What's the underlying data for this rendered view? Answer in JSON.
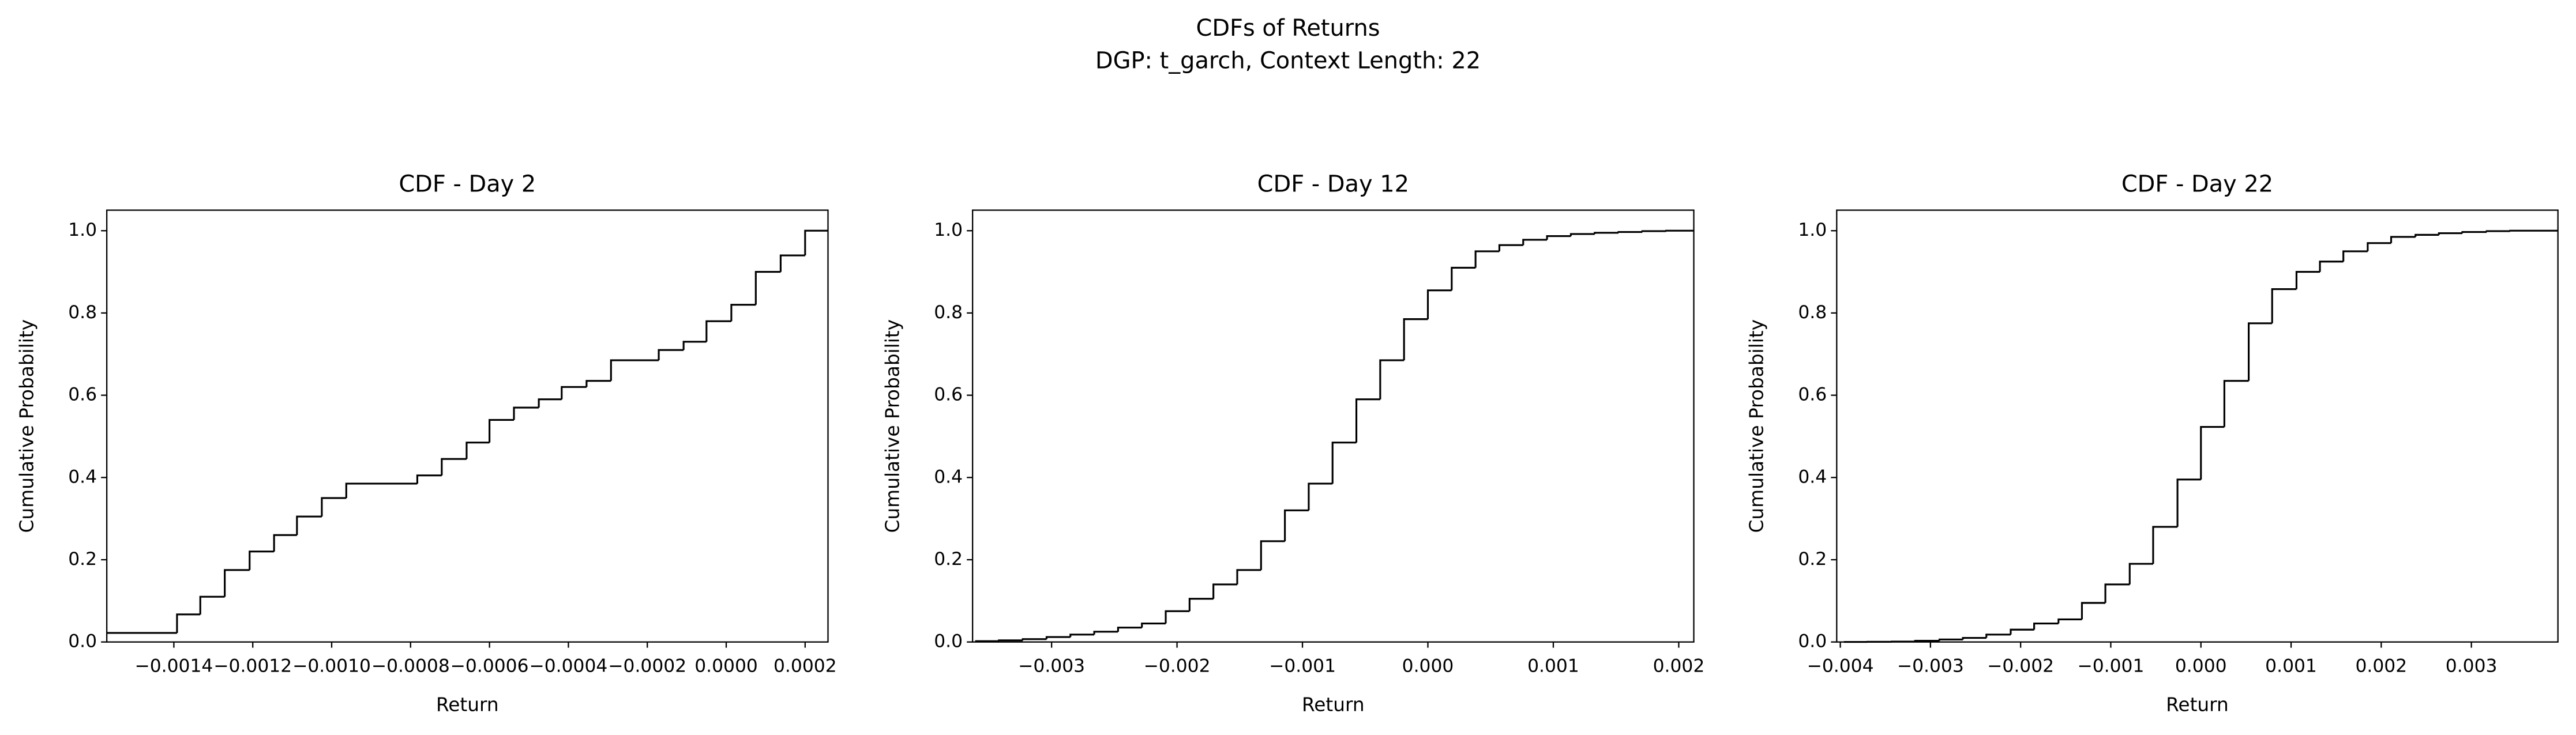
{
  "title": "CDFs of Returns",
  "subtitle": "DGP: t_garch, Context Length: 22",
  "chart_data": [
    {
      "type": "step",
      "title": "CDF - Day 2",
      "xlabel": "Return",
      "ylabel": "Cumulative Probability",
      "color": "#000000",
      "x": [
        -0.00157,
        -0.001392,
        -0.001333,
        -0.001271,
        -0.001208,
        -0.001146,
        -0.001088,
        -0.001025,
        -0.000963,
        -0.000783,
        -0.000721,
        -0.000658,
        -0.0006,
        -0.000538,
        -0.000475,
        -0.000417,
        -0.000354,
        -0.000292,
        -0.000171,
        -0.000108,
        -5e-05,
        1.3e-05,
        7.5e-05,
        0.000138,
        0.0002
      ],
      "values": [
        0.022,
        0.067,
        0.11,
        0.175,
        0.22,
        0.26,
        0.305,
        0.35,
        0.385,
        0.405,
        0.445,
        0.485,
        0.54,
        0.57,
        0.59,
        0.62,
        0.635,
        0.685,
        0.71,
        0.73,
        0.78,
        0.82,
        0.9,
        0.94,
        1.0
      ],
      "xlim": [
        -0.00157,
        0.000258
      ],
      "ylim": [
        0,
        1.05
      ],
      "xticks": [
        {
          "value": -0.0014,
          "label": "−0.0014"
        },
        {
          "value": -0.0012,
          "label": "−0.0012"
        },
        {
          "value": -0.001,
          "label": "−0.0010"
        },
        {
          "value": -0.0008,
          "label": "−0.0008"
        },
        {
          "value": -0.0006,
          "label": "−0.0006"
        },
        {
          "value": -0.0004,
          "label": "−0.0004"
        },
        {
          "value": -0.0002,
          "label": "−0.0002"
        },
        {
          "value": 0,
          "label": "0.0000"
        },
        0.0002
      ],
      "yticks": [
        {
          "value": 0,
          "label": "0.0"
        },
        0.2,
        0.4,
        0.6,
        0.8,
        {
          "value": 1,
          "label": "1.0"
        }
      ]
    },
    {
      "type": "step",
      "title": "CDF - Day 12",
      "xlabel": "Return",
      "ylabel": "Cumulative Probability",
      "color": "#000000",
      "x": [
        -0.00361,
        -0.00342,
        -0.00323,
        -0.00304,
        -0.00285,
        -0.00266,
        -0.00247,
        -0.00228,
        -0.00209,
        -0.0019,
        -0.00171,
        -0.00152,
        -0.00133,
        -0.00114,
        -0.00095,
        -0.00076,
        -0.00057,
        -0.00038,
        -0.00019,
        0,
        0.00019,
        0.00038,
        0.00057,
        0.00076,
        0.00095,
        0.00114,
        0.00133,
        0.00152,
        0.00171,
        0.0019
      ],
      "values": [
        0.002,
        0.004,
        0.007,
        0.012,
        0.018,
        0.025,
        0.035,
        0.045,
        0.075,
        0.105,
        0.14,
        0.175,
        0.245,
        0.32,
        0.385,
        0.485,
        0.59,
        0.685,
        0.785,
        0.855,
        0.91,
        0.95,
        0.965,
        0.978,
        0.987,
        0.992,
        0.995,
        0.997,
        0.999,
        1.0
      ],
      "xlim": [
        -0.00363,
        0.00212
      ],
      "ylim": [
        0,
        1.05
      ],
      "xticks": [
        {
          "value": -0.003,
          "label": "−0.003"
        },
        {
          "value": -0.002,
          "label": "−0.002"
        },
        {
          "value": -0.001,
          "label": "−0.001"
        },
        {
          "value": 0,
          "label": "0.000"
        },
        0.001,
        0.002
      ],
      "yticks": [
        {
          "value": 0,
          "label": "0.0"
        },
        0.2,
        0.4,
        0.6,
        0.8,
        {
          "value": 1,
          "label": "1.0"
        }
      ]
    },
    {
      "type": "step",
      "title": "CDF - Day 22",
      "xlabel": "Return",
      "ylabel": "Cumulative Probability",
      "color": "#000000",
      "x": [
        -0.00396,
        -0.0037,
        -0.00343,
        -0.00317,
        -0.0029,
        -0.00264,
        -0.00238,
        -0.00211,
        -0.00185,
        -0.00158,
        -0.00132,
        -0.00106,
        -0.00079,
        -0.00053,
        -0.00026,
        0,
        0.00026,
        0.00053,
        0.00079,
        0.00106,
        0.00132,
        0.00158,
        0.00185,
        0.00211,
        0.00238,
        0.00264,
        0.0029,
        0.00317,
        0.00343
      ],
      "values": [
        0.0002,
        0.0005,
        0.001,
        0.003,
        0.006,
        0.01,
        0.018,
        0.03,
        0.045,
        0.055,
        0.095,
        0.14,
        0.19,
        0.28,
        0.395,
        0.523,
        0.635,
        0.775,
        0.858,
        0.9,
        0.925,
        0.95,
        0.97,
        0.985,
        0.99,
        0.994,
        0.997,
        0.999,
        1.0
      ],
      "xlim": [
        -0.00404,
        0.00396
      ],
      "ylim": [
        0,
        1.05
      ],
      "xticks": [
        {
          "value": -0.004,
          "label": "−0.004"
        },
        {
          "value": -0.003,
          "label": "−0.003"
        },
        {
          "value": -0.002,
          "label": "−0.002"
        },
        {
          "value": -0.001,
          "label": "−0.001"
        },
        {
          "value": 0,
          "label": "0.000"
        },
        0.001,
        0.002,
        0.003
      ],
      "yticks": [
        {
          "value": 0,
          "label": "0.0"
        },
        0.2,
        0.4,
        0.6,
        0.8,
        {
          "value": 1,
          "label": "1.0"
        }
      ]
    }
  ]
}
